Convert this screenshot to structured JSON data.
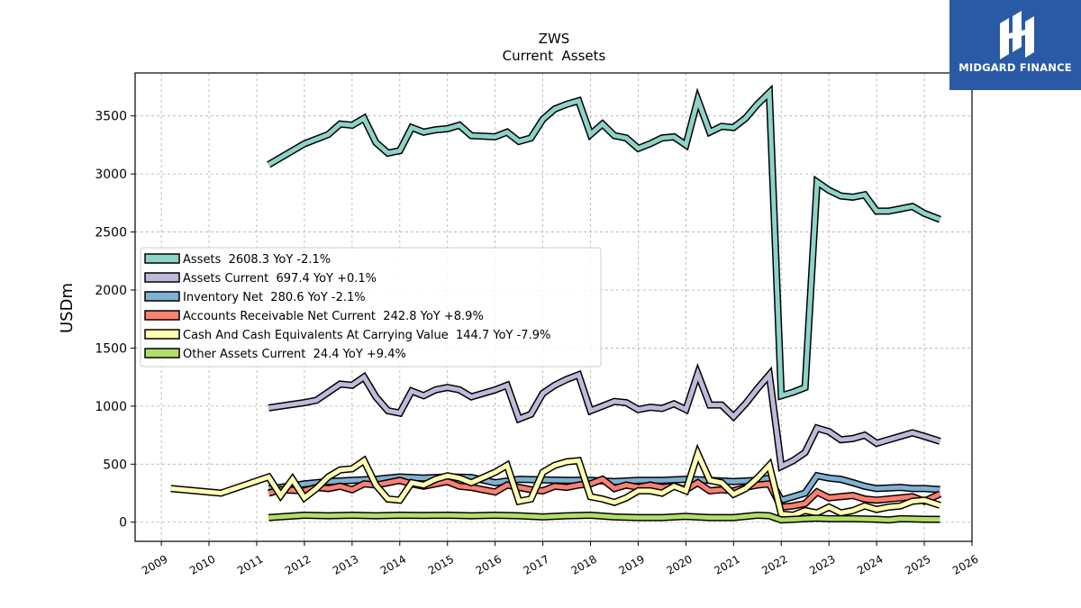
{
  "logo": {
    "text": "MIDGARD FINANCE"
  },
  "chart_data": {
    "type": "line",
    "title": "ZWS",
    "subtitle": "Current  Assets",
    "xlabel": "",
    "ylabel": "USDm",
    "xlim": [
      2008.45,
      2026.0
    ],
    "ylim": [
      -165,
      3870
    ],
    "x_ticks": [
      2009,
      2010,
      2011,
      2012,
      2013,
      2014,
      2015,
      2016,
      2017,
      2018,
      2019,
      2020,
      2021,
      2022,
      2023,
      2024,
      2025,
      2026
    ],
    "y_ticks": [
      0,
      500,
      1000,
      1500,
      2000,
      2500,
      3000,
      3500
    ],
    "grid": true,
    "legend_position": "center-left",
    "series": [
      {
        "name": "Assets  2608.3 YoY -2.1%",
        "color": "#8dd3c7",
        "points": [
          [
            2011.25,
            3080
          ],
          [
            2012.0,
            3260
          ],
          [
            2012.5,
            3340
          ],
          [
            2012.75,
            3430
          ],
          [
            2013.0,
            3420
          ],
          [
            2013.25,
            3480
          ],
          [
            2013.5,
            3270
          ],
          [
            2013.75,
            3180
          ],
          [
            2014.0,
            3200
          ],
          [
            2014.25,
            3400
          ],
          [
            2014.5,
            3360
          ],
          [
            2014.75,
            3380
          ],
          [
            2015.0,
            3390
          ],
          [
            2015.25,
            3420
          ],
          [
            2015.5,
            3330
          ],
          [
            2016.0,
            3320
          ],
          [
            2016.25,
            3360
          ],
          [
            2016.5,
            3280
          ],
          [
            2016.75,
            3310
          ],
          [
            2017.0,
            3470
          ],
          [
            2017.25,
            3560
          ],
          [
            2017.5,
            3600
          ],
          [
            2017.75,
            3630
          ],
          [
            2018.0,
            3340
          ],
          [
            2018.25,
            3430
          ],
          [
            2018.5,
            3330
          ],
          [
            2018.75,
            3310
          ],
          [
            2019.0,
            3220
          ],
          [
            2019.25,
            3260
          ],
          [
            2019.5,
            3310
          ],
          [
            2019.75,
            3320
          ],
          [
            2020.0,
            3250
          ],
          [
            2020.25,
            3640
          ],
          [
            2020.5,
            3360
          ],
          [
            2020.75,
            3410
          ],
          [
            2021.0,
            3400
          ],
          [
            2021.25,
            3480
          ],
          [
            2021.5,
            3600
          ],
          [
            2021.75,
            3700
          ],
          [
            2022.0,
            1090
          ],
          [
            2022.25,
            1120
          ],
          [
            2022.5,
            1160
          ],
          [
            2022.75,
            2930
          ],
          [
            2023.0,
            2860
          ],
          [
            2023.25,
            2810
          ],
          [
            2023.5,
            2800
          ],
          [
            2023.75,
            2820
          ],
          [
            2024.0,
            2680
          ],
          [
            2024.25,
            2680
          ],
          [
            2024.5,
            2700
          ],
          [
            2024.75,
            2720
          ],
          [
            2025.0,
            2660
          ],
          [
            2025.33,
            2608
          ]
        ]
      },
      {
        "name": "Assets Current  697.4 YoY +0.1%",
        "color": "#bebada",
        "points": [
          [
            2011.25,
            985
          ],
          [
            2012.0,
            1030
          ],
          [
            2012.25,
            1050
          ],
          [
            2012.5,
            1120
          ],
          [
            2012.75,
            1190
          ],
          [
            2013.0,
            1180
          ],
          [
            2013.25,
            1250
          ],
          [
            2013.5,
            1080
          ],
          [
            2013.75,
            960
          ],
          [
            2014.0,
            940
          ],
          [
            2014.25,
            1130
          ],
          [
            2014.5,
            1090
          ],
          [
            2014.75,
            1140
          ],
          [
            2015.0,
            1160
          ],
          [
            2015.25,
            1140
          ],
          [
            2015.5,
            1080
          ],
          [
            2016.0,
            1140
          ],
          [
            2016.25,
            1180
          ],
          [
            2016.5,
            890
          ],
          [
            2016.75,
            930
          ],
          [
            2017.0,
            1110
          ],
          [
            2017.25,
            1180
          ],
          [
            2017.5,
            1230
          ],
          [
            2017.75,
            1270
          ],
          [
            2018.0,
            960
          ],
          [
            2018.25,
            1000
          ],
          [
            2018.5,
            1040
          ],
          [
            2018.75,
            1030
          ],
          [
            2019.0,
            970
          ],
          [
            2019.25,
            990
          ],
          [
            2019.5,
            980
          ],
          [
            2019.75,
            1020
          ],
          [
            2020.0,
            970
          ],
          [
            2020.25,
            1280
          ],
          [
            2020.5,
            1010
          ],
          [
            2020.75,
            1010
          ],
          [
            2021.0,
            910
          ],
          [
            2021.25,
            1020
          ],
          [
            2021.5,
            1150
          ],
          [
            2021.75,
            1270
          ],
          [
            2022.0,
            480
          ],
          [
            2022.25,
            530
          ],
          [
            2022.5,
            600
          ],
          [
            2022.75,
            810
          ],
          [
            2023.0,
            780
          ],
          [
            2023.25,
            710
          ],
          [
            2023.5,
            720
          ],
          [
            2023.75,
            750
          ],
          [
            2024.0,
            680
          ],
          [
            2024.25,
            710
          ],
          [
            2024.5,
            740
          ],
          [
            2024.75,
            770
          ],
          [
            2025.0,
            740
          ],
          [
            2025.33,
            697
          ]
        ]
      },
      {
        "name": "Inventory Net  280.6 YoY -2.1%",
        "color": "#80b1d3",
        "points": [
          [
            2011.25,
            290
          ],
          [
            2011.5,
            300
          ],
          [
            2012.0,
            330
          ],
          [
            2012.5,
            350
          ],
          [
            2013.0,
            360
          ],
          [
            2013.5,
            370
          ],
          [
            2014.0,
            390
          ],
          [
            2014.5,
            380
          ],
          [
            2015.0,
            390
          ],
          [
            2015.5,
            385
          ],
          [
            2016.0,
            340
          ],
          [
            2016.5,
            370
          ],
          [
            2017.0,
            365
          ],
          [
            2017.5,
            360
          ],
          [
            2018.0,
            360
          ],
          [
            2018.5,
            350
          ],
          [
            2019.0,
            360
          ],
          [
            2019.5,
            360
          ],
          [
            2020.0,
            370
          ],
          [
            2020.5,
            360
          ],
          [
            2021.0,
            350
          ],
          [
            2021.5,
            360
          ],
          [
            2021.75,
            380
          ],
          [
            2022.0,
            190
          ],
          [
            2022.25,
            220
          ],
          [
            2022.5,
            250
          ],
          [
            2022.75,
            400
          ],
          [
            2023.0,
            380
          ],
          [
            2023.25,
            370
          ],
          [
            2023.5,
            340
          ],
          [
            2023.75,
            310
          ],
          [
            2024.0,
            290
          ],
          [
            2024.5,
            300
          ],
          [
            2024.75,
            290
          ],
          [
            2025.0,
            290
          ],
          [
            2025.33,
            281
          ]
        ]
      },
      {
        "name": "Accounts Receivable Net Current  242.8 YoY +8.9%",
        "color": "#fb8072",
        "points": [
          [
            2011.25,
            250
          ],
          [
            2011.5,
            280
          ],
          [
            2012.0,
            270
          ],
          [
            2012.25,
            300
          ],
          [
            2012.5,
            290
          ],
          [
            2012.75,
            310
          ],
          [
            2013.0,
            280
          ],
          [
            2013.25,
            330
          ],
          [
            2013.5,
            320
          ],
          [
            2013.75,
            340
          ],
          [
            2014.0,
            360
          ],
          [
            2014.25,
            330
          ],
          [
            2014.5,
            310
          ],
          [
            2014.75,
            330
          ],
          [
            2015.0,
            350
          ],
          [
            2015.25,
            310
          ],
          [
            2015.5,
            300
          ],
          [
            2015.75,
            280
          ],
          [
            2016.0,
            260
          ],
          [
            2016.25,
            320
          ],
          [
            2016.5,
            300
          ],
          [
            2016.75,
            280
          ],
          [
            2017.0,
            270
          ],
          [
            2017.25,
            310
          ],
          [
            2017.5,
            300
          ],
          [
            2017.75,
            320
          ],
          [
            2018.0,
            330
          ],
          [
            2018.25,
            370
          ],
          [
            2018.5,
            290
          ],
          [
            2018.75,
            320
          ],
          [
            2019.0,
            300
          ],
          [
            2019.25,
            320
          ],
          [
            2019.5,
            300
          ],
          [
            2019.75,
            310
          ],
          [
            2020.0,
            280
          ],
          [
            2020.25,
            340
          ],
          [
            2020.5,
            270
          ],
          [
            2020.75,
            280
          ],
          [
            2021.0,
            270
          ],
          [
            2021.25,
            300
          ],
          [
            2021.5,
            320
          ],
          [
            2021.75,
            330
          ],
          [
            2022.0,
            130
          ],
          [
            2022.25,
            140
          ],
          [
            2022.5,
            160
          ],
          [
            2022.75,
            260
          ],
          [
            2023.0,
            210
          ],
          [
            2023.25,
            220
          ],
          [
            2023.5,
            230
          ],
          [
            2023.75,
            200
          ],
          [
            2024.0,
            190
          ],
          [
            2024.5,
            210
          ],
          [
            2024.75,
            220
          ],
          [
            2025.0,
            180
          ],
          [
            2025.33,
            243
          ]
        ]
      },
      {
        "name": "Cash And Cash Equivalents At Carrying Value  144.7 YoY -7.9%",
        "color": "#ffffb3",
        "points": [
          [
            2009.2,
            290
          ],
          [
            2010.25,
            250
          ],
          [
            2011.25,
            390
          ],
          [
            2011.5,
            230
          ],
          [
            2011.75,
            370
          ],
          [
            2012.0,
            210
          ],
          [
            2012.25,
            290
          ],
          [
            2012.5,
            390
          ],
          [
            2012.75,
            450
          ],
          [
            2013.0,
            460
          ],
          [
            2013.25,
            530
          ],
          [
            2013.5,
            320
          ],
          [
            2013.75,
            200
          ],
          [
            2014.0,
            190
          ],
          [
            2014.25,
            340
          ],
          [
            2014.5,
            320
          ],
          [
            2014.75,
            370
          ],
          [
            2015.0,
            400
          ],
          [
            2015.25,
            380
          ],
          [
            2015.5,
            340
          ],
          [
            2016.0,
            430
          ],
          [
            2016.25,
            490
          ],
          [
            2016.5,
            180
          ],
          [
            2016.75,
            200
          ],
          [
            2017.0,
            430
          ],
          [
            2017.25,
            490
          ],
          [
            2017.5,
            520
          ],
          [
            2017.75,
            530
          ],
          [
            2018.0,
            220
          ],
          [
            2018.25,
            200
          ],
          [
            2018.5,
            170
          ],
          [
            2018.75,
            210
          ],
          [
            2019.0,
            270
          ],
          [
            2019.25,
            270
          ],
          [
            2019.5,
            250
          ],
          [
            2019.75,
            310
          ],
          [
            2020.0,
            270
          ],
          [
            2020.25,
            590
          ],
          [
            2020.5,
            360
          ],
          [
            2020.75,
            340
          ],
          [
            2021.0,
            240
          ],
          [
            2021.25,
            290
          ],
          [
            2021.5,
            380
          ],
          [
            2021.75,
            490
          ],
          [
            2022.0,
            70
          ],
          [
            2022.25,
            60
          ],
          [
            2022.5,
            100
          ],
          [
            2022.75,
            80
          ],
          [
            2023.0,
            130
          ],
          [
            2023.25,
            80
          ],
          [
            2023.5,
            100
          ],
          [
            2023.75,
            140
          ],
          [
            2024.0,
            110
          ],
          [
            2024.25,
            130
          ],
          [
            2024.5,
            140
          ],
          [
            2024.75,
            180
          ],
          [
            2025.0,
            190
          ],
          [
            2025.33,
            145
          ]
        ]
      },
      {
        "name": "Other Assets Current  24.4 YoY +9.4%",
        "color": "#b3de69",
        "points": [
          [
            2011.25,
            40
          ],
          [
            2012.0,
            60
          ],
          [
            2012.5,
            55
          ],
          [
            2013.0,
            60
          ],
          [
            2013.5,
            55
          ],
          [
            2014.0,
            60
          ],
          [
            2014.5,
            58
          ],
          [
            2015.0,
            60
          ],
          [
            2015.5,
            55
          ],
          [
            2016.0,
            60
          ],
          [
            2016.5,
            55
          ],
          [
            2017.0,
            45
          ],
          [
            2017.5,
            55
          ],
          [
            2018.0,
            60
          ],
          [
            2018.5,
            45
          ],
          [
            2019.0,
            40
          ],
          [
            2019.5,
            40
          ],
          [
            2020.0,
            50
          ],
          [
            2020.5,
            40
          ],
          [
            2021.0,
            40
          ],
          [
            2021.5,
            60
          ],
          [
            2021.75,
            55
          ],
          [
            2022.0,
            20
          ],
          [
            2022.5,
            30
          ],
          [
            2022.75,
            35
          ],
          [
            2023.0,
            30
          ],
          [
            2023.5,
            30
          ],
          [
            2024.0,
            25
          ],
          [
            2024.25,
            20
          ],
          [
            2024.5,
            30
          ],
          [
            2025.0,
            25
          ],
          [
            2025.33,
            24
          ]
        ]
      }
    ]
  }
}
